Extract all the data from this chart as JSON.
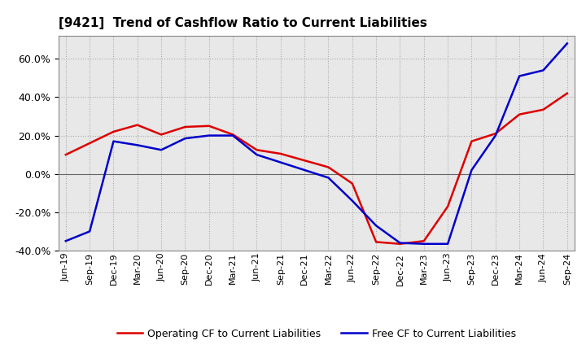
{
  "title": "[9421]  Trend of Cashflow Ratio to Current Liabilities",
  "x_labels": [
    "Jun-19",
    "Sep-19",
    "Dec-19",
    "Mar-20",
    "Jun-20",
    "Sep-20",
    "Dec-20",
    "Mar-21",
    "Jun-21",
    "Sep-21",
    "Dec-21",
    "Mar-22",
    "Jun-22",
    "Sep-22",
    "Dec-22",
    "Mar-23",
    "Jun-23",
    "Sep-23",
    "Dec-23",
    "Mar-24",
    "Jun-24",
    "Sep-24"
  ],
  "operating_cf": [
    10.0,
    16.0,
    22.0,
    25.5,
    20.5,
    24.5,
    25.0,
    20.5,
    12.5,
    10.5,
    7.0,
    3.5,
    -5.0,
    -35.5,
    -36.5,
    -35.0,
    -17.0,
    17.0,
    21.0,
    31.0,
    33.5,
    42.0
  ],
  "free_cf": [
    -35.0,
    -30.0,
    17.0,
    15.0,
    12.5,
    18.5,
    20.0,
    20.0,
    10.0,
    6.0,
    2.0,
    -2.0,
    -14.0,
    -27.0,
    -36.0,
    -36.5,
    -36.5,
    2.0,
    20.0,
    51.0,
    54.0,
    68.0
  ],
  "operating_cf_color": "#dd0000",
  "free_cf_color": "#0000cc",
  "ylim": [
    -40.0,
    72.0
  ],
  "yticks": [
    -40.0,
    -20.0,
    0.0,
    20.0,
    40.0,
    60.0
  ],
  "background_color": "#ffffff",
  "plot_bg_color": "#e8e8e8",
  "grid_color": "#aaaaaa",
  "legend_operating": "Operating CF to Current Liabilities",
  "legend_free": "Free CF to Current Liabilities",
  "line_width": 1.8
}
